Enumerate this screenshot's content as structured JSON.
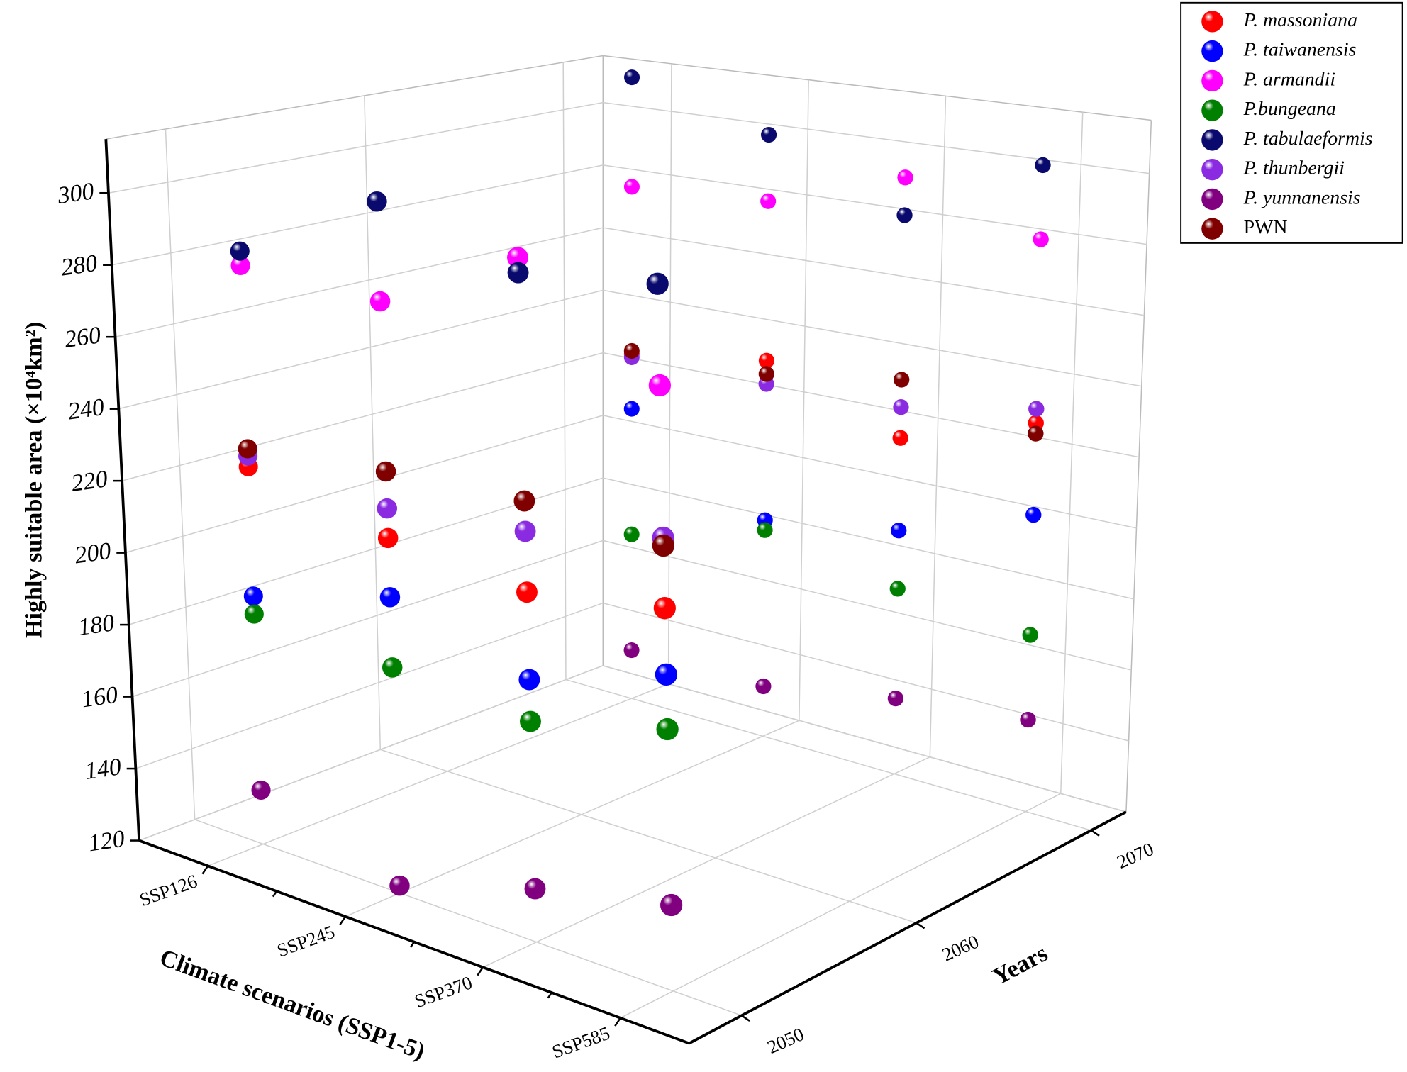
{
  "chart_data": {
    "type": "scatter3d",
    "xlabel": "Climate scenarios (SSP1-5)",
    "ylabel": "Years",
    "zlabel": "Highly suitable area (×10⁴km²)",
    "categories": [
      "SSP126",
      "SSP245",
      "SSP370",
      "SSP585"
    ],
    "ylim": [
      2047,
      2072
    ],
    "yticks": [
      2050,
      2060,
      2070
    ],
    "zlim": [
      120,
      315
    ],
    "zticks": [
      120,
      140,
      160,
      180,
      200,
      220,
      240,
      260,
      280,
      300
    ],
    "grid": true,
    "legend": "upper right",
    "series": [
      {
        "name": "P. massoniana",
        "color": "#ff0000",
        "scenarios": [
          "SSP126",
          "SSP245",
          "SSP370",
          "SSP585",
          "SSP126",
          "SSP245",
          "SSP370",
          "SSP585"
        ],
        "years": [
          2050,
          2050,
          2050,
          2050,
          2070,
          2070,
          2070,
          2070
        ],
        "values": [
          225,
          216,
          212,
          218,
          227,
          233,
          218,
          230
        ]
      },
      {
        "name": "P. taiwanensis",
        "color": "#0000ff",
        "scenarios": [
          "SSP126",
          "SSP245",
          "SSP370",
          "SSP585",
          "SSP126",
          "SSP245",
          "SSP370",
          "SSP585"
        ],
        "years": [
          2050,
          2050,
          2050,
          2050,
          2070,
          2070,
          2070,
          2070
        ],
        "values": [
          189,
          200,
          189,
          201,
          210,
          185,
          191,
          204
        ]
      },
      {
        "name": "P. armandii",
        "color": "#ff00ff",
        "scenarios": [
          "SSP126",
          "SSP245",
          "SSP370",
          "SSP585",
          "SSP126",
          "SSP245",
          "SSP370",
          "SSP585"
        ],
        "years": [
          2050,
          2050,
          2050,
          2050,
          2070,
          2070,
          2070,
          2070
        ],
        "values": [
          281,
          280,
          300,
          275,
          279,
          281,
          294,
          282
        ]
      },
      {
        "name": "P.bungeana",
        "color": "#008000",
        "scenarios": [
          "SSP126",
          "SSP245",
          "SSP370",
          "SSP585",
          "SSP126",
          "SSP245",
          "SSP370",
          "SSP585"
        ],
        "years": [
          2050,
          2050,
          2050,
          2050,
          2070,
          2070,
          2070,
          2070
        ],
        "values": [
          184,
          181,
          178,
          187,
          171,
          182,
          174,
          170
        ]
      },
      {
        "name": "P. tabulaeformis",
        "color": "#0a0a6e",
        "scenarios": [
          "SSP126",
          "SSP245",
          "SSP370",
          "SSP585",
          "SSP126",
          "SSP245",
          "SSP370",
          "SSP585"
        ],
        "years": [
          2050,
          2050,
          2050,
          2050,
          2070,
          2070,
          2070,
          2070
        ],
        "values": [
          285,
          307,
          296,
          301,
          313,
          301,
          283,
          303
        ]
      },
      {
        "name": "P. thunbergii",
        "color": "#8a2be2",
        "scenarios": [
          "SSP126",
          "SSP245",
          "SSP370",
          "SSP585",
          "SSP126",
          "SSP245",
          "SSP370",
          "SSP585"
        ],
        "years": [
          2050,
          2050,
          2050,
          2050,
          2070,
          2070,
          2070,
          2070
        ],
        "values": [
          228,
          224,
          228,
          236,
          226,
          226,
          227,
          234
        ]
      },
      {
        "name": "P. yunnanensis",
        "color": "#800080",
        "scenarios": [
          "SSP126",
          "SSP245",
          "SSP370",
          "SSP585",
          "SSP126",
          "SSP245",
          "SSP370",
          "SSP585"
        ],
        "years": [
          2050,
          2050,
          2050,
          2050,
          2070,
          2070,
          2070,
          2070
        ],
        "values": [
          135,
          122,
          134,
          142,
          135,
          135,
          142,
          146
        ]
      },
      {
        "name": "PWN",
        "color": "#800000",
        "scenarios": [
          "SSP126",
          "SSP245",
          "SSP370",
          "SSP585",
          "SSP126",
          "SSP245",
          "SSP370",
          "SSP585"
        ],
        "years": [
          2050,
          2050,
          2050,
          2050,
          2070,
          2070,
          2070,
          2070
        ],
        "values": [
          230,
          234,
          236,
          234,
          228,
          229,
          235,
          227
        ]
      }
    ]
  }
}
